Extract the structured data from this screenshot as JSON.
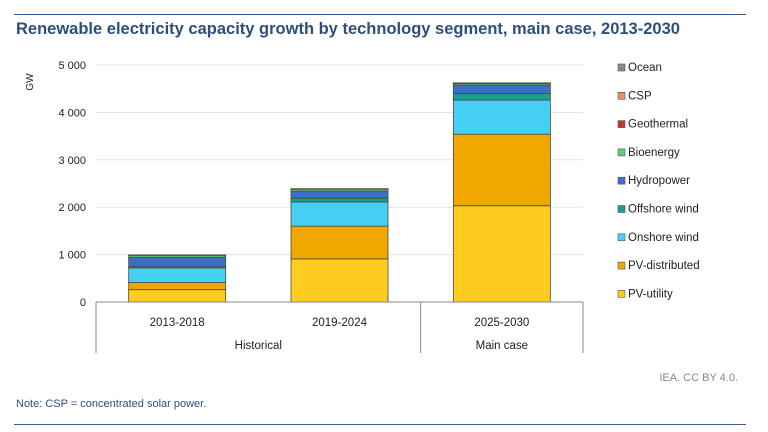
{
  "chart_data": {
    "type": "bar",
    "stacked": true,
    "title": "Renewable electricity capacity growth by technology segment, main case, 2013-2030",
    "ylabel": "GW",
    "ylim": [
      0,
      5000
    ],
    "yticks": [
      0,
      1000,
      2000,
      3000,
      4000,
      5000
    ],
    "ytick_labels": [
      "0",
      "1 000",
      "2 000",
      "3 000",
      "4 000",
      "5 000"
    ],
    "categories": [
      "2013-2018",
      "2019-2024",
      "2025-2030"
    ],
    "groups": [
      {
        "label": "Historical",
        "span": 2
      },
      {
        "label": "Main case",
        "span": 1
      }
    ],
    "legend_position": "right",
    "series": [
      {
        "name": "PV-utility",
        "color": "#ffcc1f",
        "values": [
          260,
          910,
          2030
        ]
      },
      {
        "name": "PV-distributed",
        "color": "#f0a800",
        "values": [
          150,
          690,
          1510
        ]
      },
      {
        "name": "Onshore wind",
        "color": "#47d0f5",
        "values": [
          310,
          510,
          720
        ]
      },
      {
        "name": "Offshore wind",
        "color": "#1a9e8f",
        "values": [
          25,
          80,
          140
        ]
      },
      {
        "name": "Hydropower",
        "color": "#3b6fc4",
        "values": [
          200,
          150,
          180
        ]
      },
      {
        "name": "Bioenergy",
        "color": "#5fcf7a",
        "values": [
          40,
          40,
          30
        ]
      },
      {
        "name": "Geothermal",
        "color": "#c0392b",
        "values": [
          5,
          5,
          5
        ]
      },
      {
        "name": "CSP",
        "color": "#f08c5a",
        "values": [
          3,
          3,
          5
        ]
      },
      {
        "name": "Ocean",
        "color": "#8c8c8c",
        "values": [
          0,
          2,
          3
        ]
      }
    ]
  },
  "note": "Note: CSP = concentrated solar power.",
  "credit": "IEA. CC BY 4.0."
}
